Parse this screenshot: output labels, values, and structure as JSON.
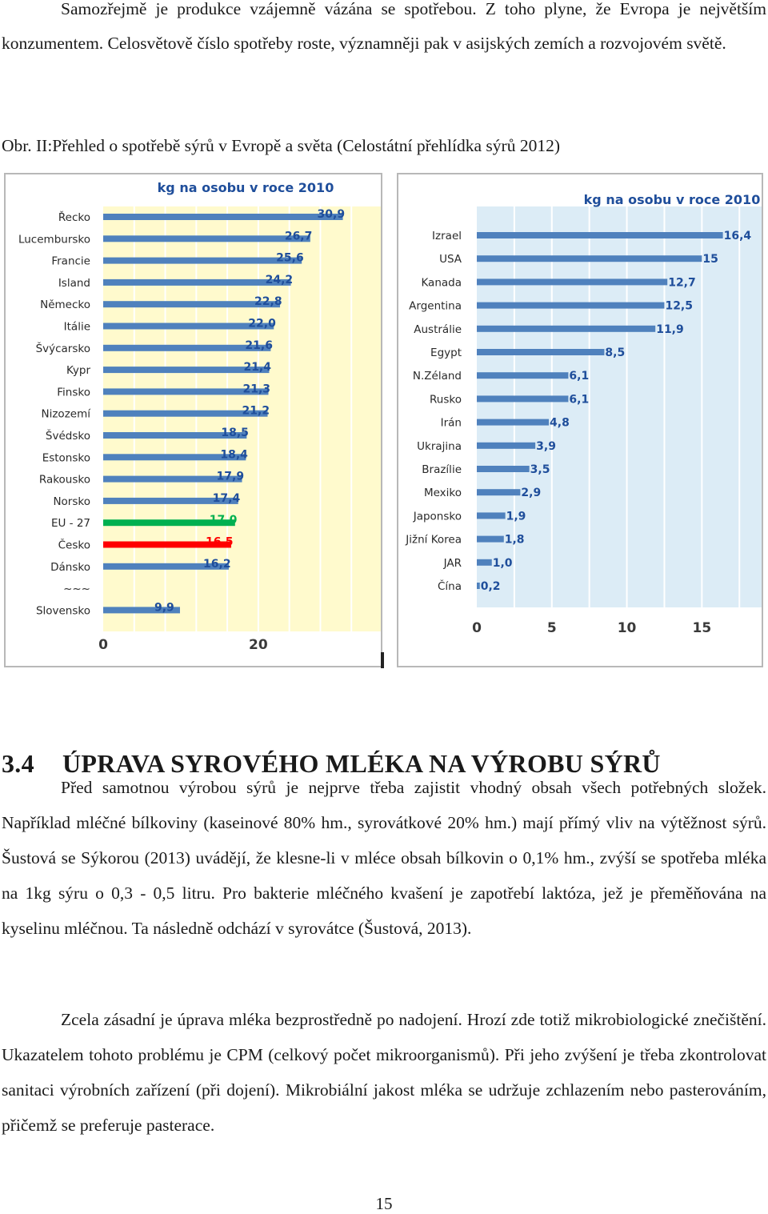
{
  "intro_paragraph": "Samozřejmě je produkce vzájemně vázána se spotřebou. Z toho plyne, že Evropa je největším konzumentem. Celosvětově číslo spotřeby roste, významněji pak v asijských zemích a rozvojovém světě.",
  "figure_caption": "Obr. II:Přehled o spotřebě sýrů v Evropě a světa (Celostátní přehlídka sýrů 2012)",
  "section": {
    "number": "3.4",
    "title": "ÚPRAVA SYROVÉHO MLÉKA NA VÝROBU SÝRŮ"
  },
  "body_paragraph_1": "Před samotnou výrobou sýrů je nejprve třeba zajistit vhodný obsah všech potřebných složek. Například mléčné bílkoviny (kaseinové 80% hm., syrovátkové 20% hm.) mají přímý vliv na výtěžnost sýrů. Šustová se Sýkorou (2013) uvádějí, že klesne-li v mléce obsah bílkovin o 0,1% hm., zvýší se spotřeba mléka na 1kg sýru o 0,3 - 0,5 litru. Pro bakterie mléčného kvašení je zapotřebí laktóza, jež je přeměňována na kyselinu mléčnou. Ta následně odchází v syrovátce (Šustová, 2013).",
  "body_paragraph_2": "Zcela zásadní je úprava mléka bezprostředně po nadojení. Hrozí zde totiž mikrobiologické znečištění. Ukazatelem tohoto problému je CPM (celkový počet mikroorganismů). Při jeho zvýšení je třeba zkontrolovat sanitaci výrobních zařízení (při dojení). Mikrobiální jakost mléka se udržuje zchlazením nebo pasterováním, přičemž se preferuje pasterace.",
  "page_number": "15",
  "colors": {
    "bar_blue": "#4f81bd",
    "bar_green": "#00b050",
    "bar_red": "#ff0000",
    "label_blue": "#1f4e9b",
    "europe_background": "#fffacd",
    "world_background": "#dcecf6",
    "grid": "#ffffff"
  },
  "chart_data": [
    {
      "type": "bar",
      "orientation": "horizontal",
      "title": "kg na osobu  v roce 2010",
      "categories": [
        "Řecko",
        "Lucembursko",
        "Francie",
        "Island",
        "Německo",
        "Itálie",
        "Švýcarsko",
        "Kypr",
        "Finsko",
        "Nizozemí",
        "Švédsko",
        "Estonsko",
        "Rakousko",
        "Norsko",
        "EU - 27",
        "Česko",
        "Dánsko",
        "~~~",
        "Slovensko"
      ],
      "values": [
        30.9,
        26.7,
        25.6,
        24.2,
        22.8,
        22.0,
        21.6,
        21.4,
        21.3,
        21.2,
        18.5,
        18.4,
        17.9,
        17.4,
        17.0,
        16.5,
        16.2,
        null,
        9.9
      ],
      "value_labels": [
        "30,9",
        "26,7",
        "25,6",
        "24,2",
        "22,8",
        "22,0",
        "21,6",
        "21,4",
        "21,3",
        "21,2",
        "18,5",
        "18,4",
        "17,9",
        "17,4",
        "17,0",
        "16,5",
        "16,2",
        "",
        "9,9"
      ],
      "highlight": {
        "EU - 27": "green",
        "Česko": "red"
      },
      "xticks": [
        "0",
        "20"
      ],
      "xlim": [
        0,
        36
      ],
      "grid": true,
      "legend": "none"
    },
    {
      "type": "bar",
      "orientation": "horizontal",
      "title": "kg na osobu v roce 2010",
      "categories": [
        "Izrael",
        "USA",
        "Kanada",
        "Argentina",
        "Austrálie",
        "Egypt",
        "N.Zéland",
        "Rusko",
        "Irán",
        "Ukrajina",
        "Brazílie",
        "Mexiko",
        "Japonsko",
        "Jižní Korea",
        "JAR",
        "Čína"
      ],
      "values": [
        16.4,
        15,
        12.7,
        12.5,
        11.9,
        8.5,
        6.1,
        6.1,
        4.8,
        3.9,
        3.5,
        2.9,
        1.9,
        1.8,
        1.0,
        0.2
      ],
      "value_labels": [
        "16,4",
        "15",
        "12,7",
        "12,5",
        "11,9",
        "8,5",
        "6,1",
        "6,1",
        "4,8",
        "3,9",
        "3,5",
        "2,9",
        "1,9",
        "1,8",
        "1,0",
        "0,2"
      ],
      "xticks": [
        "0",
        "5",
        "10",
        "15"
      ],
      "xlim": [
        0,
        18.5
      ],
      "grid": true,
      "legend": "none"
    }
  ]
}
